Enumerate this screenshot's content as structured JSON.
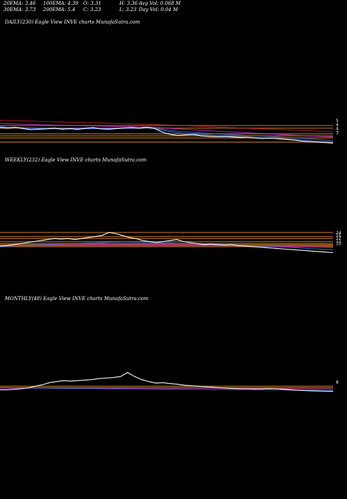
{
  "header": {
    "ema20": "20EMA: 3.46",
    "ema100": "100EMA: 4.39",
    "open": "O: 3.31",
    "high": "H: 3.36",
    "avg_vol": "Avg Vol: 0.068  M",
    "ema30": "30EMA: 3.73",
    "ema200": "200EMA: 5.4",
    "close": "C: 3.23",
    "low": "L: 3.23",
    "day_vol": "Day Vol: 0.04  M"
  },
  "colors": {
    "background": "#000000",
    "bands": "#8a5415",
    "price": "#ffffff",
    "ema_blue": "#3a6fe0",
    "ema_magenta": "#d02ad0",
    "ema_red": "#c02020"
  },
  "chart_data": [
    {
      "type": "line",
      "title": "DAILY(230) Eagle   View  INVE charts MunafaSutra.com",
      "yticks": [
        "5",
        "4",
        "4",
        "3"
      ],
      "series": [
        {
          "values": [
            6.2,
            6.1,
            6.25,
            6.0,
            5.8,
            5.9,
            5.95,
            6.1,
            5.9,
            6.0,
            5.85,
            6.05,
            6.2,
            5.95,
            5.9,
            6.0,
            6.15,
            6.2,
            6.1,
            6.3,
            6.0,
            5.3,
            4.9,
            4.7,
            4.8,
            4.9,
            4.6,
            4.5,
            4.45,
            4.5,
            4.4,
            4.3,
            4.35,
            4.2,
            4.1,
            4.15,
            4.05,
            3.9,
            3.8,
            3.6,
            3.5,
            3.4,
            3.3,
            3.23
          ]
        },
        {
          "values": [
            6.3,
            6.2,
            6.15,
            6.1,
            6.05,
            6.0,
            5.98,
            5.97,
            5.96,
            5.95,
            5.95,
            5.96,
            5.98,
            6.0,
            6.0,
            6.02,
            6.05,
            6.08,
            6.1,
            6.12,
            6.0,
            5.7,
            5.4,
            5.2,
            5.05,
            4.95,
            4.85,
            4.75,
            4.65,
            4.58,
            4.5,
            4.43,
            4.38,
            4.3,
            4.22,
            4.16,
            4.1,
            4.0,
            3.92,
            3.82,
            3.72,
            3.62,
            3.55,
            3.46
          ]
        },
        {
          "values": [
            6.4,
            6.3,
            6.25,
            6.2,
            6.15,
            6.1,
            6.08,
            6.06,
            6.05,
            6.05,
            6.05,
            6.05,
            6.06,
            6.07,
            6.08,
            6.09,
            6.1,
            6.12,
            6.13,
            6.15,
            6.05,
            5.85,
            5.65,
            5.5,
            5.38,
            5.28,
            5.18,
            5.08,
            4.98,
            4.9,
            4.82,
            4.74,
            4.67,
            4.6,
            4.52,
            4.45,
            4.38,
            4.3,
            4.22,
            4.12,
            4.02,
            3.92,
            3.83,
            3.73
          ]
        },
        {
          "values": [
            7.0,
            6.95,
            6.9,
            6.86,
            6.82,
            6.78,
            6.74,
            6.7,
            6.66,
            6.62,
            6.58,
            6.55,
            6.52,
            6.49,
            6.46,
            6.43,
            6.4,
            6.37,
            6.34,
            6.31,
            6.25,
            6.15,
            6.05,
            5.95,
            5.85,
            5.76,
            5.68,
            5.6,
            5.52,
            5.44,
            5.36,
            5.28,
            5.2,
            5.12,
            5.04,
            4.96,
            4.88,
            4.8,
            4.72,
            4.64,
            4.58,
            4.52,
            4.46,
            4.39
          ]
        },
        {
          "values": [
            7.6,
            7.56,
            7.52,
            7.48,
            7.44,
            7.4,
            7.36,
            7.32,
            7.28,
            7.24,
            7.2,
            7.16,
            7.12,
            7.08,
            7.04,
            7.0,
            6.96,
            6.92,
            6.88,
            6.84,
            6.8,
            6.74,
            6.68,
            6.62,
            6.56,
            6.5,
            6.44,
            6.38,
            6.32,
            6.26,
            6.2,
            6.14,
            6.08,
            6.02,
            5.96,
            5.9,
            5.84,
            5.78,
            5.72,
            5.66,
            5.6,
            5.54,
            5.47,
            5.4
          ]
        }
      ],
      "bands": [
        6.6,
        6.1,
        5.0,
        4.6,
        4.2,
        3.4
      ]
    },
    {
      "type": "line",
      "title": "WEEKLY(232) Eagle   View  INVE charts MunafaSutra.com",
      "yticks": [
        "24",
        "15",
        "12",
        "11",
        "10"
      ],
      "series": [
        {
          "values": [
            10.5,
            11,
            12,
            13,
            14,
            15,
            16,
            17,
            18,
            17.5,
            18,
            17,
            18,
            19,
            20,
            21,
            24,
            23,
            21,
            19,
            18,
            16,
            15,
            14,
            15,
            16,
            17,
            15,
            14,
            13,
            12,
            12.5,
            12,
            11.5,
            12,
            11,
            10.5,
            10,
            9.5,
            9,
            8.5,
            8,
            7.5,
            7,
            6.5,
            6,
            5.5,
            5,
            4.5,
            4
          ]
        },
        {
          "values": [
            10,
            10.3,
            10.6,
            10.9,
            11.2,
            11.5,
            11.8,
            12.1,
            12.4,
            12.7,
            13,
            13.2,
            13.4,
            13.6,
            13.8,
            14,
            14.3,
            14.5,
            14.6,
            14.6,
            14.5,
            14.4,
            14.2,
            14,
            13.8,
            13.6,
            13.4,
            13.2,
            13,
            12.8,
            12.6,
            12.4,
            12.2,
            12,
            11.8,
            11.6,
            11.3,
            11,
            10.7,
            10.4,
            10.1,
            9.8,
            9.5,
            9.1,
            8.7,
            8.3,
            7.9,
            7.5,
            7.1,
            6.7
          ]
        },
        {
          "values": [
            10.8,
            10.9,
            11,
            11.1,
            11.2,
            11.3,
            11.4,
            11.5,
            11.6,
            11.7,
            11.8,
            11.9,
            12,
            12.1,
            12.2,
            12.3,
            12.4,
            12.5,
            12.5,
            12.5,
            12.5,
            12.5,
            12.4,
            12.3,
            12.2,
            12.1,
            12,
            11.9,
            11.8,
            11.7,
            11.6,
            11.5,
            11.4,
            11.3,
            11.2,
            11.1,
            11,
            10.9,
            10.8,
            10.7,
            10.6,
            10.5,
            10.4,
            10.3,
            10.1,
            9.9,
            9.7,
            9.5,
            9.3,
            9.1
          ]
        },
        {
          "values": [
            11.3,
            11.3,
            11.3,
            11.3,
            11.3,
            11.3,
            11.3,
            11.3,
            11.3,
            11.3,
            11.3,
            11.3,
            11.3,
            11.3,
            11.3,
            11.3,
            11.3,
            11.3,
            11.3,
            11.3,
            11.3,
            11.3,
            11.3,
            11.3,
            11.3,
            11.3,
            11.3,
            11.3,
            11.3,
            11.3,
            11.3,
            11.2,
            11.2,
            11.1,
            11,
            10.9,
            10.8,
            10.7,
            10.6,
            10.5,
            10.4,
            10.3,
            10.2,
            10.1,
            10,
            9.9,
            9.8,
            9.7,
            9.6,
            9.5
          ]
        }
      ],
      "bands": [
        24,
        20,
        18,
        15,
        13,
        12,
        11.6,
        11,
        10.6,
        10
      ]
    },
    {
      "type": "line",
      "title": "MONTHLY(48) Eagle   View  INVE charts MunafaSutra.com",
      "yticks": [
        "8"
      ],
      "series": [
        {
          "values": [
            6,
            6,
            6.5,
            7,
            8,
            9.5,
            11,
            13,
            14,
            15,
            14.5,
            15,
            15.5,
            16,
            17,
            17.5,
            18,
            19,
            23,
            19,
            16,
            14,
            12.5,
            13,
            12,
            11.5,
            10.5,
            10,
            9.5,
            9,
            8.5,
            8,
            7.5,
            7.2,
            7,
            7,
            6.8,
            6.9,
            7.2,
            7,
            6.5,
            6,
            5.5,
            5.2,
            5,
            4.8,
            4.6,
            4.5
          ]
        },
        {
          "values": [
            8.2,
            8.1,
            8,
            7.9,
            7.8,
            7.7,
            7.6,
            7.5,
            7.4,
            7.35,
            7.3,
            7.25,
            7.2,
            7.15,
            7.1,
            7.05,
            7,
            6.95,
            6.9,
            6.85,
            6.8,
            6.75,
            6.7,
            6.65,
            6.6,
            6.55,
            6.5,
            6.45,
            6.4,
            6.35,
            6.3,
            6.25,
            6.2,
            6.15,
            6.1,
            6.05,
            6,
            5.95,
            5.9,
            5.85,
            5.8,
            5.75,
            5.7,
            5.65,
            5.6,
            5.55,
            5.5,
            5.45
          ]
        },
        {
          "values": [
            7.6,
            7.6,
            7.6,
            7.6,
            7.6,
            7.6,
            7.6,
            7.6,
            7.6,
            7.6,
            7.6,
            7.6,
            7.6,
            7.6,
            7.6,
            7.6,
            7.6,
            7.6,
            7.6,
            7.6,
            7.6,
            7.6,
            7.6,
            7.6,
            7.6,
            7.6,
            7.6,
            7.6,
            7.6,
            7.6,
            7.55,
            7.5,
            7.45,
            7.4,
            7.35,
            7.3,
            7.25,
            7.2,
            7.15,
            7.1,
            7.05,
            7,
            6.95,
            6.9,
            6.85,
            6.8,
            6.75,
            6.7
          ]
        }
      ],
      "bands": [
        9.5,
        8
      ]
    }
  ]
}
